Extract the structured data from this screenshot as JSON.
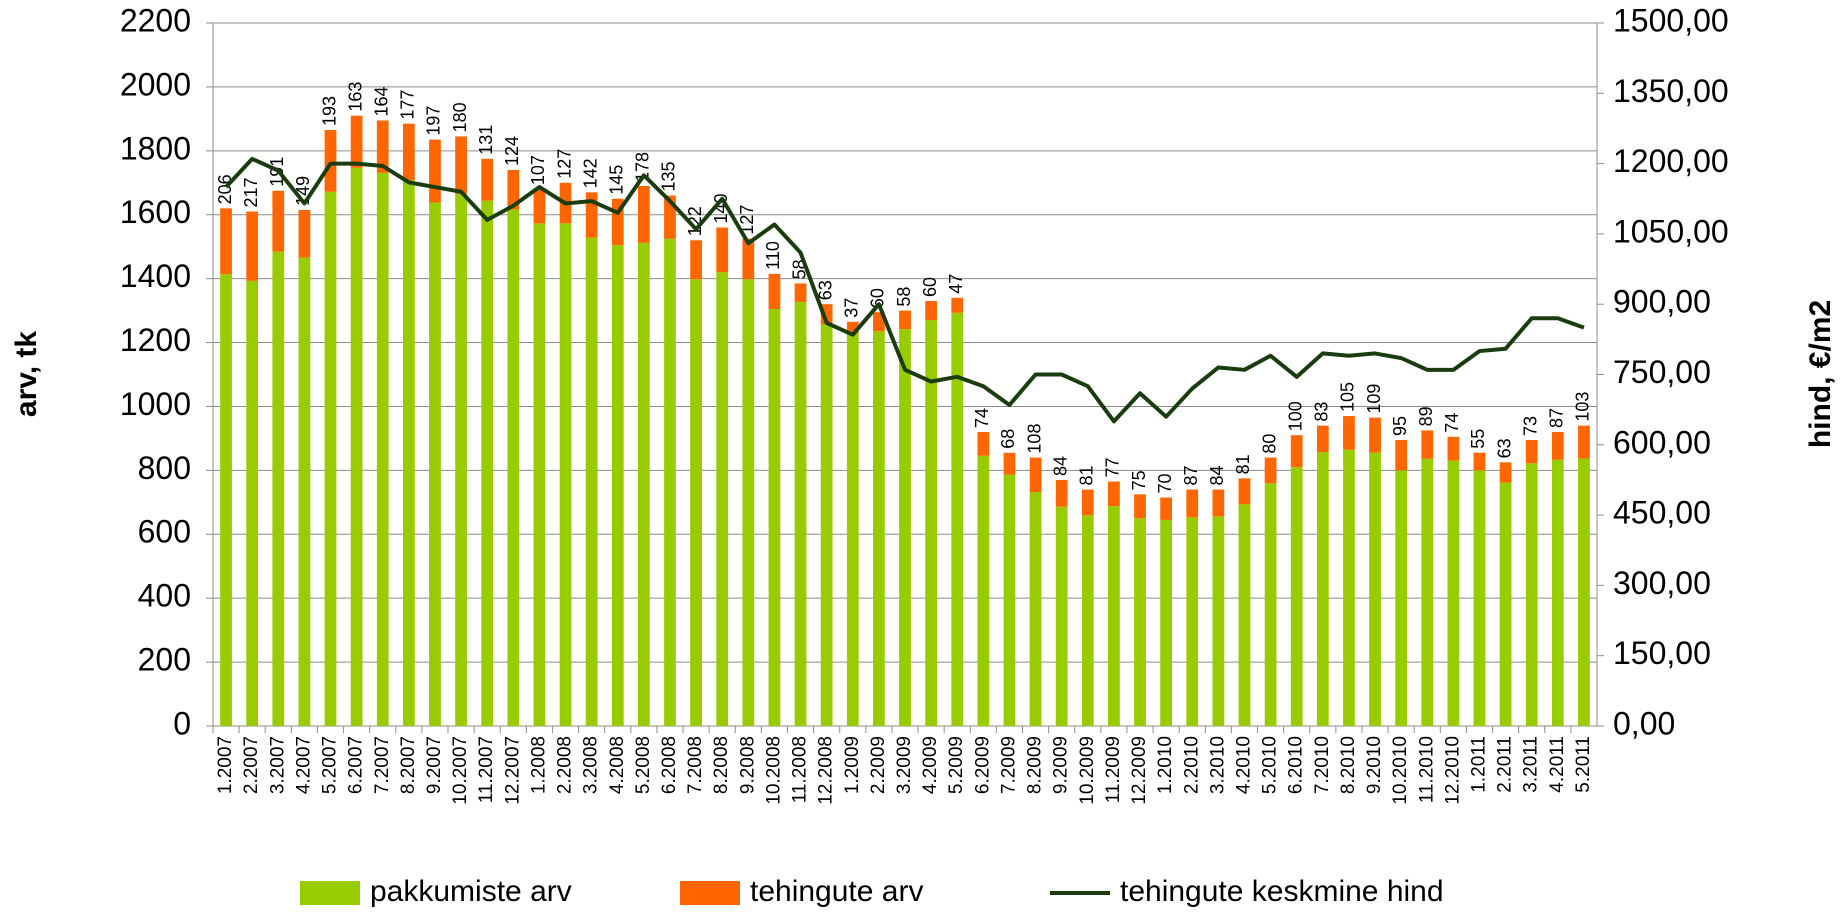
{
  "chart_data": {
    "type": "bar",
    "stacked": true,
    "categories": [
      "1.2007",
      "2.2007",
      "3.2007",
      "4.2007",
      "5.2007",
      "6.2007",
      "7.2007",
      "8.2007",
      "9.2007",
      "10.2007",
      "11.2007",
      "12.2007",
      "1.2008",
      "2.2008",
      "3.2008",
      "4.2008",
      "5.2008",
      "6.2008",
      "7.2008",
      "8.2008",
      "9.2008",
      "10.2008",
      "11.2008",
      "12.2008",
      "1.2009",
      "2.2009",
      "3.2009",
      "4.2009",
      "5.2009",
      "6.2009",
      "7.2009",
      "8.2009",
      "9.2009",
      "10.2009",
      "11.2009",
      "12.2009",
      "1.2010",
      "2.2010",
      "3.2010",
      "4.2010",
      "5.2010",
      "6.2010",
      "7.2010",
      "8.2010",
      "9.2010",
      "10.2010",
      "11.2010",
      "12.2010",
      "1.2011",
      "2.2011",
      "3.2011",
      "4.2011",
      "5.2011"
    ],
    "series": [
      {
        "name": "pakkumiste arv",
        "color": "#99cc00",
        "type": "bar",
        "values": [
          1414,
          1393,
          1484,
          1466,
          1672,
          1747,
          1731,
          1708,
          1638,
          1665,
          1644,
          1616,
          1573,
          1573,
          1528,
          1505,
          1512,
          1525,
          1398,
          1420,
          1398,
          1305,
          1327,
          1257,
          1228,
          1235,
          1242,
          1270,
          1293,
          846,
          787,
          732,
          686,
          659,
          688,
          650,
          645,
          653,
          656,
          694,
          760,
          810,
          857,
          865,
          856,
          800,
          836,
          831,
          800,
          762,
          822,
          833,
          837
        ]
      },
      {
        "name": "tehingute arv",
        "color": "#ff6600",
        "type": "bar",
        "show_labels": true,
        "values": [
          206,
          217,
          191,
          149,
          193,
          163,
          164,
          177,
          197,
          180,
          131,
          124,
          107,
          127,
          142,
          145,
          178,
          135,
          122,
          140,
          127,
          110,
          58,
          63,
          37,
          60,
          58,
          60,
          47,
          74,
          68,
          108,
          84,
          81,
          77,
          75,
          70,
          87,
          84,
          81,
          80,
          100,
          83,
          105,
          109,
          95,
          89,
          74,
          55,
          63,
          73,
          87,
          103
        ]
      },
      {
        "name": "tehingute keskmine hind",
        "color": "#1a3d0f",
        "type": "line",
        "axis": "y2",
        "values": [
          1150,
          1210,
          1185,
          1115,
          1200,
          1200,
          1195,
          1160,
          1150,
          1140,
          1080,
          1110,
          1150,
          1115,
          1120,
          1095,
          1175,
          1120,
          1060,
          1125,
          1030,
          1070,
          1010,
          860,
          835,
          900,
          760,
          735,
          745,
          725,
          685,
          750,
          750,
          725,
          650,
          710,
          660,
          720,
          765,
          760,
          790,
          745,
          795,
          790,
          795,
          785,
          760,
          760,
          800,
          805,
          870,
          870,
          850
        ]
      }
    ],
    "ylabel": "arv, tk",
    "y2label": "hind, €/m2",
    "ylim": [
      0,
      2200
    ],
    "yticks": [
      0,
      200,
      400,
      600,
      800,
      1000,
      1200,
      1400,
      1600,
      1800,
      2000,
      2200
    ],
    "y2lim": [
      0,
      1500
    ],
    "y2ticks": [
      {
        "value": 0,
        "label": "0,00"
      },
      {
        "value": 150,
        "label": "150,00"
      },
      {
        "value": 300,
        "label": "300,00"
      },
      {
        "value": 450,
        "label": "450,00"
      },
      {
        "value": 600,
        "label": "600,00"
      },
      {
        "value": 750,
        "label": "750,00"
      },
      {
        "value": 900,
        "label": "900,00"
      },
      {
        "value": 1050,
        "label": "1050,00"
      },
      {
        "value": 1200,
        "label": "1200,00"
      },
      {
        "value": 1350,
        "label": "1350,00"
      },
      {
        "value": 1500,
        "label": "1500,00"
      }
    ],
    "grid": true,
    "legend": "bottom"
  }
}
